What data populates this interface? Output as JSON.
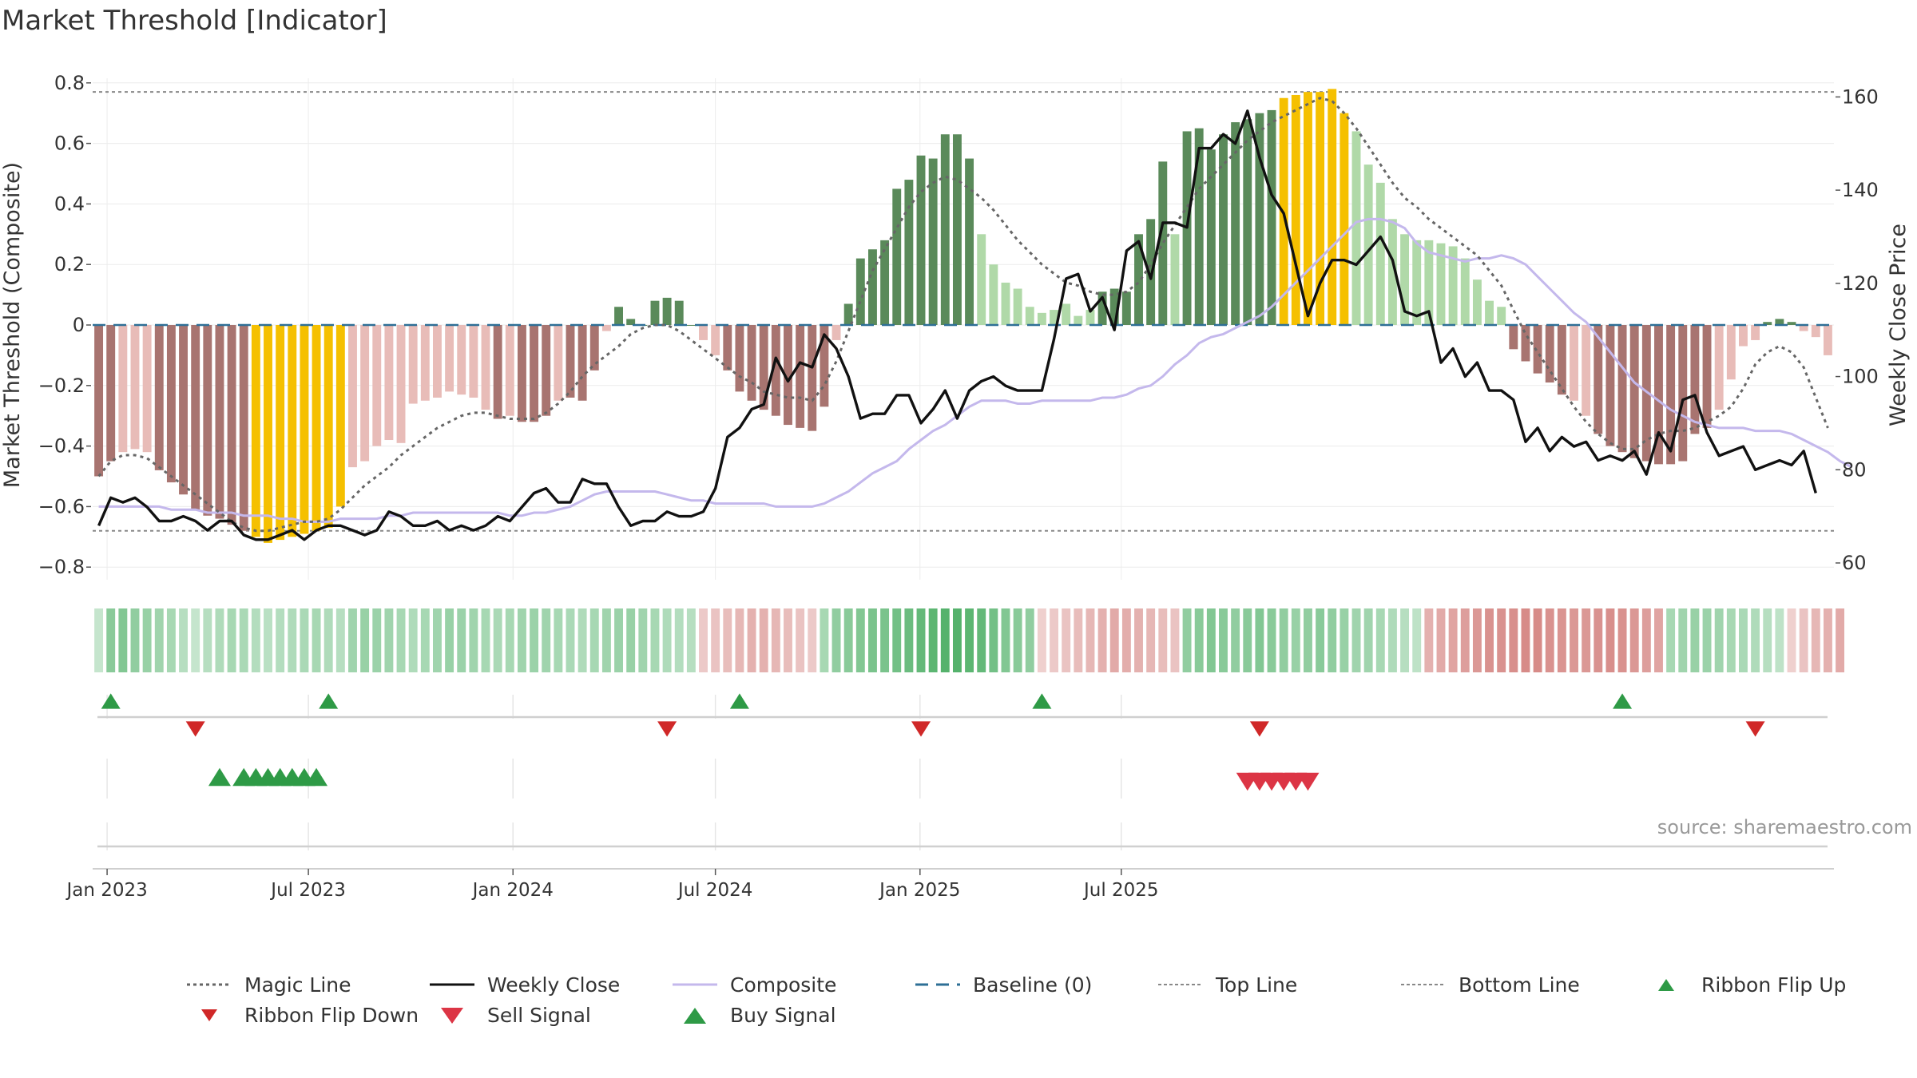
{
  "title": "Market Threshold [Indicator]",
  "source": "source: sharemaestro.com",
  "colors": {
    "bar_pos_strong": "#5a8a5a",
    "bar_pos_weak": "#b0d9a8",
    "bar_neg_strong": "#a87470",
    "bar_neg_weak": "#e8bcb8",
    "bar_extreme": "#f5c000",
    "weekly_close": "#111111",
    "composite": "#c4b8ec",
    "magic_line": "#666666",
    "baseline": "#2e6f96",
    "ref_lines": "#888888",
    "buy": "#2e9a46",
    "sell": "#dc3545",
    "flip_down": "#d02828"
  },
  "chart_data": {
    "type": "bar",
    "title": "Market Threshold [Indicator]",
    "ylabel": "Market Threshold (Composite)",
    "y2label": "Weekly Close Price",
    "ylim": [
      -0.8,
      0.8
    ],
    "y2lim": [
      60,
      160
    ],
    "yticks": [
      "0.8",
      "0.6",
      "0.4",
      "0.2",
      "0",
      "−0.2",
      "−0.4",
      "−0.6",
      "−0.8"
    ],
    "y2ticks": [
      "160",
      "140",
      "120",
      "100",
      "80",
      "60"
    ],
    "xticks": [
      "Jan 2023",
      "Jul 2023",
      "Jan 2024",
      "Jul 2024",
      "Jan 2025",
      "Jul 2025"
    ],
    "top_line": 0.77,
    "bottom_line": -0.68,
    "baseline": 0,
    "grid": true,
    "legend_position": "bottom",
    "legend": [
      "Magic Line",
      "Weekly Close",
      "Composite",
      "Baseline (0)",
      "Top Line",
      "Bottom Line",
      "Ribbon Flip Up",
      "Ribbon Flip Down",
      "Sell Signal",
      "Buy Signal"
    ],
    "weeks": {
      "start": "2022-12-19",
      "interval_days": 7,
      "count": 144
    },
    "bars": {
      "values": [
        -0.5,
        -0.45,
        -0.42,
        -0.41,
        -0.42,
        -0.48,
        -0.52,
        -0.56,
        -0.61,
        -0.63,
        -0.64,
        -0.66,
        -0.68,
        -0.7,
        -0.72,
        -0.71,
        -0.7,
        -0.69,
        -0.68,
        -0.67,
        -0.6,
        -0.47,
        -0.45,
        -0.4,
        -0.38,
        -0.39,
        -0.26,
        -0.25,
        -0.24,
        -0.22,
        -0.23,
        -0.24,
        -0.28,
        -0.31,
        -0.3,
        -0.32,
        -0.32,
        -0.3,
        -0.25,
        -0.24,
        -0.25,
        -0.15,
        -0.02,
        0.06,
        0.02,
        0.0,
        0.08,
        0.09,
        0.08,
        0.0,
        -0.05,
        -0.1,
        -0.15,
        -0.22,
        -0.25,
        -0.28,
        -0.3,
        -0.33,
        -0.34,
        -0.35,
        -0.27,
        -0.05,
        0.07,
        0.22,
        0.25,
        0.28,
        0.45,
        0.48,
        0.56,
        0.55,
        0.63,
        0.63,
        0.55,
        0.3,
        0.2,
        0.14,
        0.12,
        0.06,
        0.04,
        0.05,
        0.07,
        0.03,
        0.05,
        0.11,
        0.12,
        0.11,
        0.3,
        0.35,
        0.54,
        0.3,
        0.64,
        0.65,
        0.58,
        0.63,
        0.67,
        0.68,
        0.7,
        0.71,
        0.75,
        0.76,
        0.77,
        0.77,
        0.78,
        0.7,
        0.64,
        0.53,
        0.47,
        0.35,
        0.3,
        0.28,
        0.28,
        0.27,
        0.26,
        0.22,
        0.15,
        0.08,
        0.06,
        -0.08,
        -0.12,
        -0.16,
        -0.19,
        -0.23,
        -0.25,
        -0.3,
        -0.36,
        -0.4,
        -0.42,
        -0.44,
        -0.45,
        -0.46,
        -0.46,
        -0.45,
        -0.36,
        -0.34,
        -0.28,
        -0.18,
        -0.07,
        -0.05,
        0.01,
        0.02,
        0.01,
        -0.02,
        -0.04,
        -0.1
      ],
      "extreme_weeks": [
        13,
        14,
        15,
        16,
        17,
        18,
        19,
        20,
        98,
        99,
        100,
        101,
        102,
        103
      ]
    },
    "magic_line": [
      -0.5,
      -0.45,
      -0.43,
      -0.43,
      -0.44,
      -0.47,
      -0.5,
      -0.53,
      -0.56,
      -0.59,
      -0.62,
      -0.65,
      -0.67,
      -0.68,
      -0.68,
      -0.67,
      -0.66,
      -0.65,
      -0.65,
      -0.64,
      -0.61,
      -0.57,
      -0.53,
      -0.5,
      -0.47,
      -0.43,
      -0.4,
      -0.37,
      -0.34,
      -0.32,
      -0.3,
      -0.29,
      -0.29,
      -0.3,
      -0.31,
      -0.31,
      -0.31,
      -0.29,
      -0.26,
      -0.22,
      -0.17,
      -0.13,
      -0.1,
      -0.07,
      -0.03,
      -0.01,
      0.0,
      0.0,
      -0.02,
      -0.05,
      -0.08,
      -0.11,
      -0.14,
      -0.17,
      -0.19,
      -0.22,
      -0.23,
      -0.24,
      -0.24,
      -0.25,
      -0.2,
      -0.12,
      -0.02,
      0.08,
      0.18,
      0.25,
      0.32,
      0.39,
      0.44,
      0.47,
      0.49,
      0.48,
      0.45,
      0.42,
      0.38,
      0.33,
      0.28,
      0.24,
      0.2,
      0.17,
      0.14,
      0.13,
      0.11,
      0.1,
      0.1,
      0.11,
      0.14,
      0.2,
      0.27,
      0.33,
      0.39,
      0.45,
      0.49,
      0.53,
      0.57,
      0.61,
      0.64,
      0.67,
      0.69,
      0.71,
      0.73,
      0.75,
      0.74,
      0.7,
      0.65,
      0.59,
      0.53,
      0.47,
      0.42,
      0.39,
      0.35,
      0.32,
      0.29,
      0.26,
      0.23,
      0.18,
      0.13,
      0.05,
      -0.03,
      -0.09,
      -0.15,
      -0.21,
      -0.27,
      -0.32,
      -0.36,
      -0.39,
      -0.41,
      -0.41,
      -0.38,
      -0.36,
      -0.35,
      -0.35,
      -0.34,
      -0.32,
      -0.3,
      -0.27,
      -0.21,
      -0.13,
      -0.09,
      -0.07,
      -0.09,
      -0.14,
      -0.24,
      -0.34
    ],
    "composite": [
      -0.6,
      -0.6,
      -0.6,
      -0.6,
      -0.6,
      -0.6,
      -0.61,
      -0.61,
      -0.61,
      -0.62,
      -0.62,
      -0.62,
      -0.63,
      -0.63,
      -0.63,
      -0.64,
      -0.64,
      -0.65,
      -0.65,
      -0.65,
      -0.64,
      -0.64,
      -0.64,
      -0.64,
      -0.63,
      -0.63,
      -0.62,
      -0.62,
      -0.62,
      -0.62,
      -0.62,
      -0.62,
      -0.62,
      -0.62,
      -0.63,
      -0.63,
      -0.62,
      -0.62,
      -0.61,
      -0.6,
      -0.58,
      -0.56,
      -0.55,
      -0.55,
      -0.55,
      -0.55,
      -0.55,
      -0.56,
      -0.57,
      -0.58,
      -0.58,
      -0.59,
      -0.59,
      -0.59,
      -0.59,
      -0.59,
      -0.6,
      -0.6,
      -0.6,
      -0.6,
      -0.59,
      -0.57,
      -0.55,
      -0.52,
      -0.49,
      -0.47,
      -0.45,
      -0.41,
      -0.38,
      -0.35,
      -0.33,
      -0.3,
      -0.27,
      -0.25,
      -0.25,
      -0.25,
      -0.26,
      -0.26,
      -0.25,
      -0.25,
      -0.25,
      -0.25,
      -0.25,
      -0.24,
      -0.24,
      -0.23,
      -0.21,
      -0.2,
      -0.17,
      -0.13,
      -0.1,
      -0.06,
      -0.04,
      -0.03,
      -0.01,
      0.01,
      0.03,
      0.06,
      0.1,
      0.14,
      0.18,
      0.22,
      0.26,
      0.3,
      0.34,
      0.35,
      0.35,
      0.34,
      0.32,
      0.27,
      0.24,
      0.23,
      0.22,
      0.21,
      0.22,
      0.22,
      0.23,
      0.22,
      0.2,
      0.16,
      0.12,
      0.08,
      0.04,
      0.01,
      -0.04,
      -0.09,
      -0.14,
      -0.19,
      -0.22,
      -0.25,
      -0.28,
      -0.3,
      -0.32,
      -0.33,
      -0.34,
      -0.34,
      -0.34,
      -0.35,
      -0.35,
      -0.35,
      -0.36,
      -0.38,
      -0.4,
      -0.42,
      -0.45,
      -0.47
    ],
    "weekly_close": [
      68,
      74,
      73,
      74,
      72,
      69,
      69,
      70,
      69,
      67,
      69,
      69,
      66,
      65,
      65,
      66,
      67,
      65,
      67,
      68,
      68,
      67,
      66,
      67,
      71,
      70,
      68,
      68,
      69,
      67,
      68,
      67,
      68,
      70,
      69,
      72,
      75,
      76,
      73,
      73,
      78,
      77,
      77,
      72,
      68,
      69,
      69,
      71,
      70,
      70,
      71,
      76,
      87,
      89,
      93,
      94,
      104,
      99,
      103,
      102,
      109,
      106,
      100,
      91,
      92,
      92,
      96,
      96,
      90,
      93,
      97,
      91,
      97,
      99,
      100,
      98,
      97,
      97,
      97,
      108,
      121,
      122,
      114,
      117,
      110,
      127,
      129,
      121,
      133,
      133,
      132,
      149,
      149,
      152,
      150,
      157,
      147,
      139,
      135,
      124,
      113,
      120,
      125,
      125,
      124,
      127,
      130,
      125,
      114,
      113,
      114,
      103,
      106,
      100,
      103,
      97,
      97,
      95,
      86,
      89,
      84,
      87,
      85,
      86,
      82,
      83,
      82,
      84,
      79,
      88,
      84,
      95,
      96,
      88,
      83,
      84,
      85,
      80,
      81,
      82,
      81,
      84,
      75
    ],
    "ribbon": {
      "values": [
        0.1,
        0.5,
        0.55,
        0.45,
        0.4,
        0.35,
        0.3,
        0.2,
        0.1,
        0.2,
        0.25,
        0.3,
        0.28,
        0.22,
        0.18,
        0.22,
        0.25,
        0.28,
        0.3,
        0.25,
        0.2,
        0.35,
        0.4,
        0.38,
        0.35,
        0.3,
        0.25,
        0.3,
        0.35,
        0.4,
        0.38,
        0.35,
        0.3,
        0.28,
        0.3,
        0.35,
        0.38,
        0.35,
        0.3,
        0.28,
        0.25,
        0.3,
        0.35,
        0.38,
        0.4,
        0.35,
        0.3,
        0.25,
        0.22,
        0.2,
        -0.15,
        -0.2,
        -0.25,
        -0.3,
        -0.35,
        -0.35,
        -0.3,
        -0.25,
        -0.2,
        -0.15,
        0.3,
        0.45,
        0.5,
        0.55,
        0.6,
        0.6,
        0.65,
        0.7,
        0.75,
        0.8,
        0.85,
        0.85,
        0.8,
        0.75,
        0.65,
        0.55,
        0.5,
        0.45,
        -0.1,
        -0.15,
        -0.2,
        -0.25,
        -0.3,
        -0.35,
        -0.4,
        -0.38,
        -0.35,
        -0.3,
        -0.25,
        -0.2,
        0.45,
        0.5,
        0.55,
        0.5,
        0.45,
        0.5,
        0.55,
        0.5,
        0.45,
        0.4,
        0.45,
        0.5,
        0.45,
        0.4,
        0.35,
        0.35,
        0.3,
        0.25,
        0.2,
        0.15,
        -0.35,
        -0.4,
        -0.45,
        -0.5,
        -0.55,
        -0.6,
        -0.6,
        -0.62,
        -0.65,
        -0.65,
        -0.6,
        -0.58,
        -0.55,
        -0.55,
        -0.6,
        -0.62,
        -0.6,
        -0.55,
        -0.5,
        -0.45,
        0.3,
        0.35,
        0.4,
        0.38,
        0.35,
        0.3,
        0.28,
        0.25,
        0.2,
        0.15,
        -0.1,
        -0.2,
        -0.3,
        -0.35,
        -0.4
      ]
    },
    "ribbon_flip_up_weeks": [
      1,
      19,
      53,
      78,
      126
    ],
    "ribbon_flip_down_weeks": [
      8,
      47,
      68,
      96,
      137
    ],
    "buy_signal_weeks": [
      10,
      12,
      13,
      14,
      15,
      16,
      17,
      18
    ],
    "sell_signal_weeks": [
      95,
      96,
      97,
      98,
      99,
      100
    ]
  }
}
